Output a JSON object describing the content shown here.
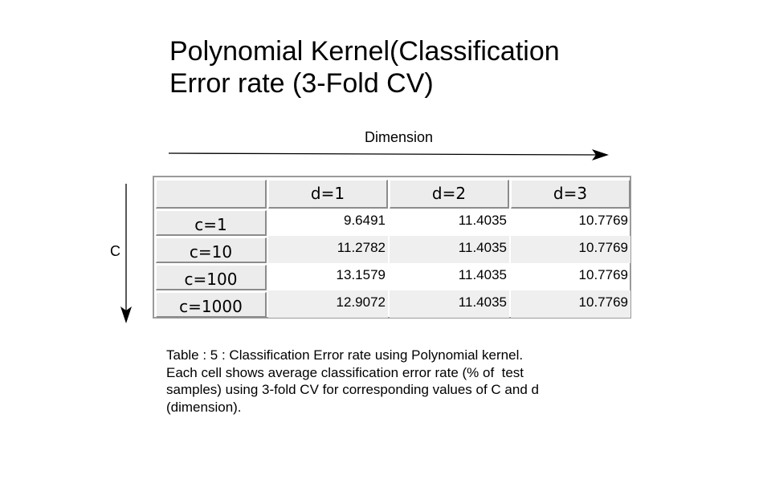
{
  "title": {
    "line1": "Polynomial Kernel(Classification",
    "line2": "Error rate (3-Fold CV)"
  },
  "axis_labels": {
    "horizontal": "Dimension",
    "vertical": "C"
  },
  "table": {
    "corner": "",
    "columns": [
      "d=1",
      "d=2",
      "d=3"
    ],
    "rows": [
      {
        "label": "c=1",
        "values": [
          "9.6491",
          "11.4035",
          "10.7769"
        ]
      },
      {
        "label": "c=10",
        "values": [
          "11.2782",
          "11.4035",
          "10.7769"
        ]
      },
      {
        "label": "c=100",
        "values": [
          "13.1579",
          "11.4035",
          "10.7769"
        ]
      },
      {
        "label": "c=1000",
        "values": [
          "12.9072",
          "11.4035",
          "10.7769"
        ]
      }
    ]
  },
  "caption": {
    "line1": "Table : 5 : Classification Error rate using Polynomial kernel.",
    "line2": "Each cell shows average classification error rate (% of  test",
    "line3": "samples) using 3-fold CV for corresponding values of C and d",
    "line4": "(dimension)."
  }
}
